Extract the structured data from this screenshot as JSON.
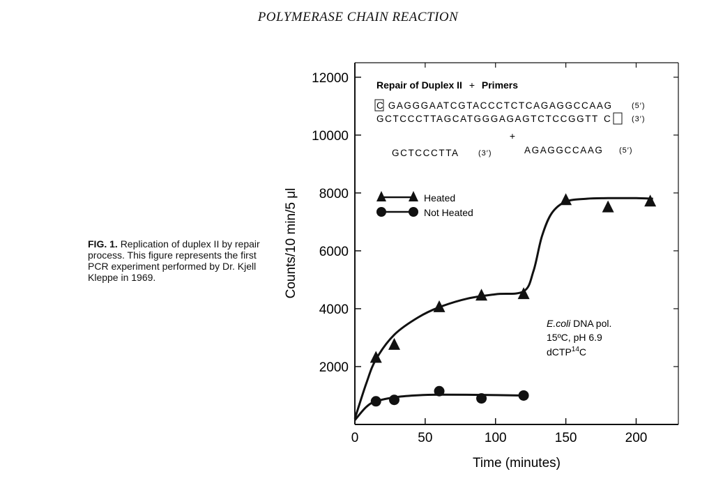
{
  "page": {
    "running_header": "POLYMERASE CHAIN REACTION",
    "caption": {
      "label": "FIG. 1.",
      "text": "Replication of duplex II by repair process. This figure represents the first PCR experiment performed by Dr. Kjell Kleppe in 1969."
    }
  },
  "chart_data": {
    "type": "scatter",
    "xlabel": "Time (minutes)",
    "ylabel": "Counts/10 min/5 μl",
    "xlim": [
      0,
      230
    ],
    "ylim": [
      0,
      12500
    ],
    "x_ticks": [
      0,
      50,
      100,
      150,
      200
    ],
    "y_ticks": [
      2000,
      4000,
      6000,
      8000,
      10000,
      12000
    ],
    "x_tick_labels": [
      "0",
      "50",
      "100",
      "150",
      "200"
    ],
    "y_tick_labels": [
      "2000",
      "4000",
      "6000",
      "8000",
      "10000",
      "12000"
    ],
    "grid": false,
    "legend_position": "left",
    "series": [
      {
        "name": "Heated",
        "marker": "triangle",
        "points": [
          [
            15,
            2300
          ],
          [
            28,
            2750
          ],
          [
            60,
            4050
          ],
          [
            90,
            4450
          ],
          [
            120,
            4500
          ],
          [
            150,
            7750
          ],
          [
            180,
            7500
          ],
          [
            210,
            7700
          ]
        ],
        "curve": [
          [
            0,
            200
          ],
          [
            8,
            1400
          ],
          [
            15,
            2250
          ],
          [
            28,
            3100
          ],
          [
            45,
            3700
          ],
          [
            60,
            4050
          ],
          [
            80,
            4350
          ],
          [
            100,
            4500
          ],
          [
            120,
            4600
          ],
          [
            127,
            5300
          ],
          [
            133,
            6500
          ],
          [
            140,
            7300
          ],
          [
            150,
            7700
          ],
          [
            165,
            7800
          ],
          [
            180,
            7820
          ],
          [
            200,
            7820
          ],
          [
            212,
            7800
          ]
        ]
      },
      {
        "name": "Not Heated",
        "marker": "circle",
        "points": [
          [
            15,
            800
          ],
          [
            28,
            850
          ],
          [
            60,
            1150
          ],
          [
            90,
            900
          ],
          [
            120,
            1000
          ]
        ],
        "curve": [
          [
            0,
            150
          ],
          [
            8,
            600
          ],
          [
            15,
            800
          ],
          [
            30,
            950
          ],
          [
            45,
            1010
          ],
          [
            60,
            1030
          ],
          [
            90,
            1020
          ],
          [
            120,
            1000
          ]
        ]
      }
    ],
    "annotations": {
      "inset_title_main": "Repair of Duplex II",
      "inset_title_plus": "+",
      "inset_title_tail": "Primers",
      "duplex_top_boxed": "C",
      "duplex_top_rest": "GAGGGAATCGTACCCTCTCAGAGGCCAAG",
      "duplex_top_end": "(5′)",
      "duplex_bottom_rest": "GCTCCCTTAGCATGGGAGAGTCTCCGGTT",
      "duplex_bottom_boxed": "C",
      "duplex_bottom_end": "(3′)",
      "plus_sign": "+",
      "primer_left_seq": "GCTCCCTTA",
      "primer_left_end": "(3′)",
      "primer_right_seq": "AGAGGCCAAG",
      "primer_right_end": "(5′)",
      "conditions": {
        "line1_italic": "E.coli",
        "line1_rest": " DNA pol.",
        "line2": "15ºC, pH 6.9",
        "line3_base": "dCTP",
        "line3_sup": "14",
        "line3_tail": "C"
      }
    }
  }
}
